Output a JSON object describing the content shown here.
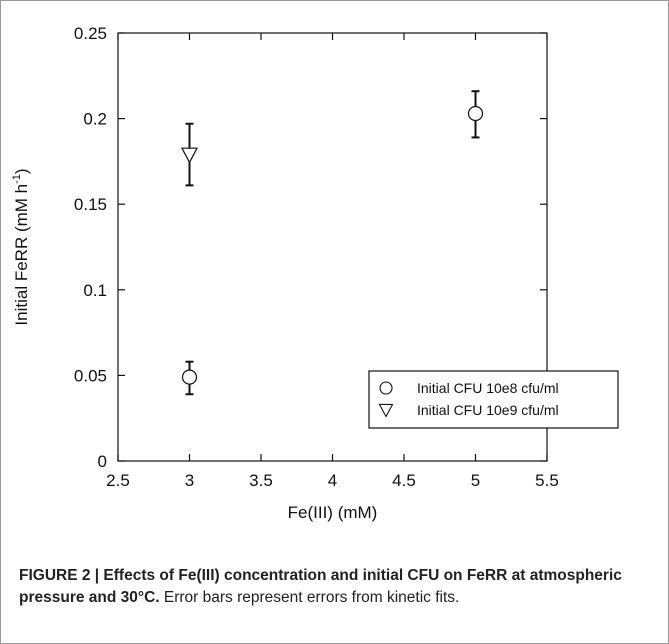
{
  "chart_data": {
    "type": "scatter",
    "xlabel": "Fe(III) (mM)",
    "ylabel": "Initial FeRR (mM h",
    "ylabel_sup": "-1",
    "ylabel_close": ")",
    "xlim": [
      2.5,
      5.5
    ],
    "ylim": [
      0,
      0.25
    ],
    "x_ticks": [
      2.5,
      3,
      3.5,
      4,
      4.5,
      5,
      5.5
    ],
    "x_tick_labels": [
      "2.5",
      "3",
      "3.5",
      "4",
      "4.5",
      "5",
      "5.5"
    ],
    "y_ticks": [
      0,
      0.05,
      0.1,
      0.15,
      0.2,
      0.25
    ],
    "y_tick_labels": [
      "0",
      "0.05",
      "0.1",
      "0.15",
      "0.2",
      "0.25"
    ],
    "grid": false,
    "legend_position": "bottom-right",
    "series": [
      {
        "name": "Initial CFU 10e8 cfu/ml",
        "marker": "circle",
        "points": [
          {
            "x": 3,
            "y": 0.049,
            "err_low": 0.039,
            "err_high": 0.058
          },
          {
            "x": 5,
            "y": 0.203,
            "err_low": 0.189,
            "err_high": 0.216
          }
        ]
      },
      {
        "name": "Initial CFU 10e9 cfu/ml",
        "marker": "triangle-down",
        "points": [
          {
            "x": 3,
            "y": 0.179,
            "err_low": 0.161,
            "err_high": 0.197
          }
        ]
      }
    ]
  },
  "caption": {
    "bold": "FIGURE 2 | Effects of Fe(III) concentration and initial CFU on FeRR at atmospheric pressure and 30°C.",
    "text": " Error bars represent errors from kinetic fits."
  }
}
